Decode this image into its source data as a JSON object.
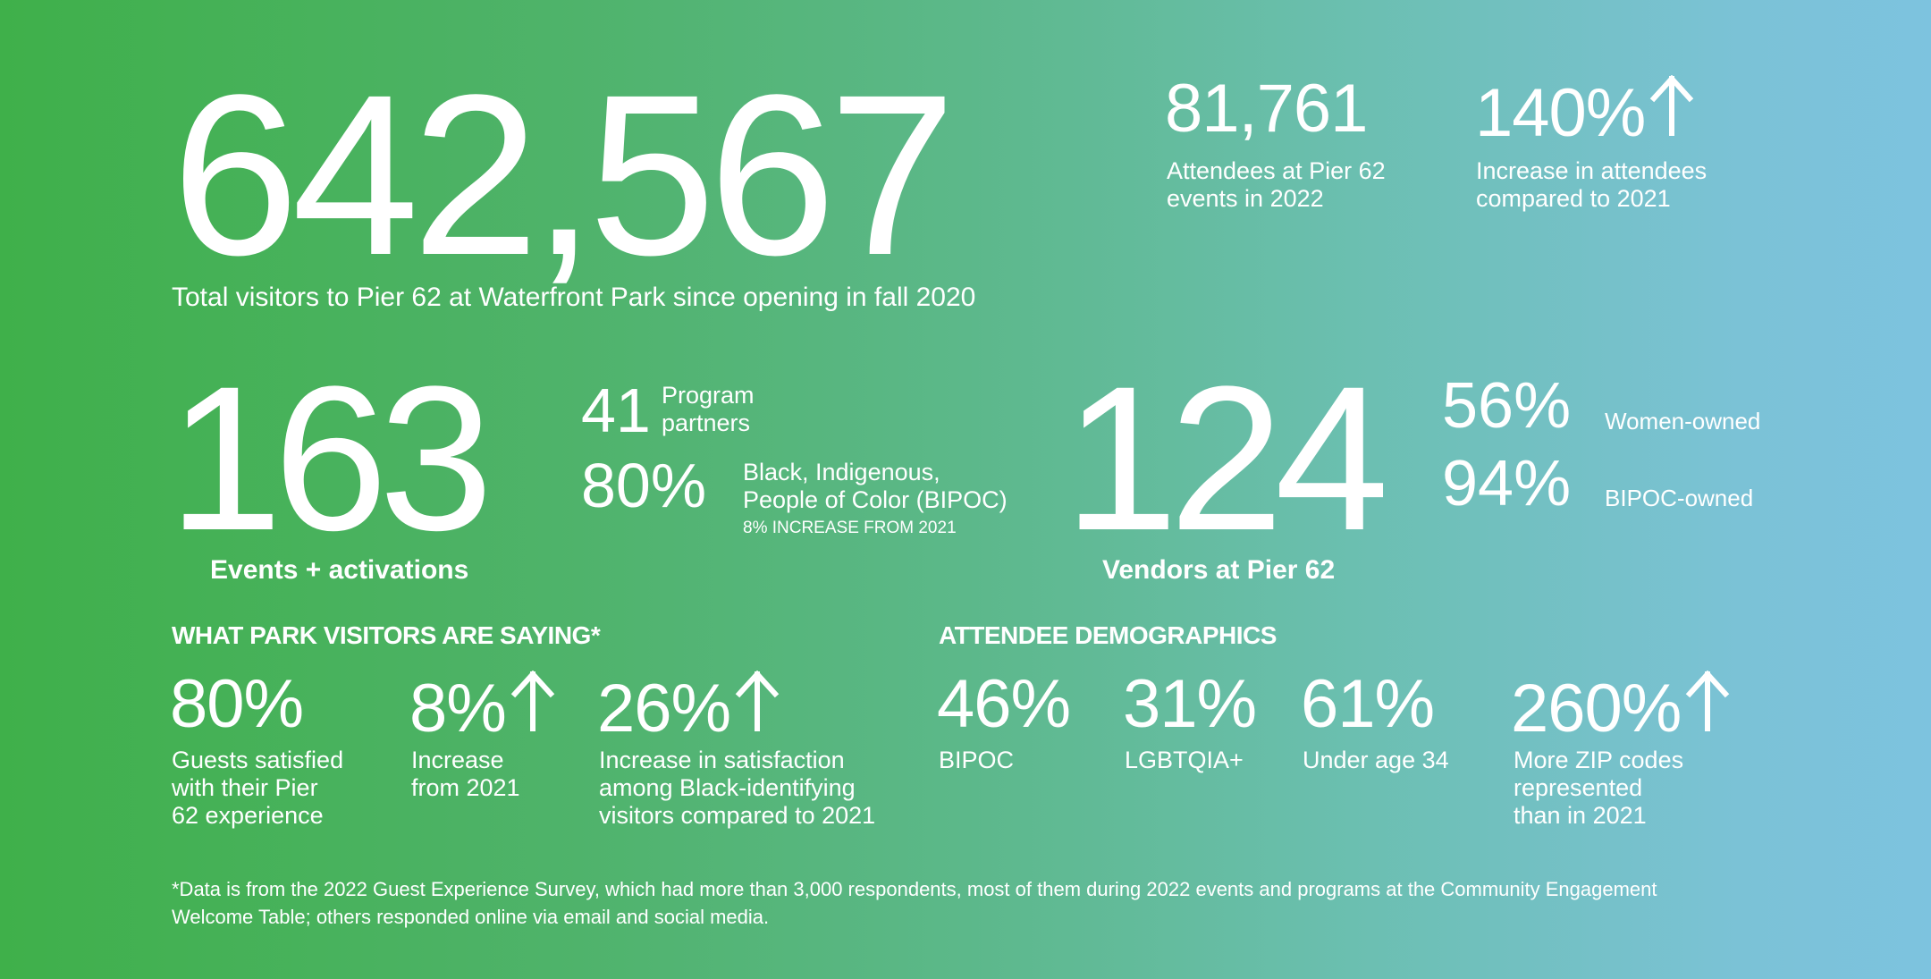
{
  "top": {
    "total_visitors": "642,567",
    "total_visitors_label": "Total visitors to Pier 62 at Waterfront Park since opening in fall 2020",
    "attendees_value": "81,761",
    "attendees_label": "Attendees at Pier 62\nevents in 2022",
    "increase_value": "140%",
    "increase_label": "Increase in attendees\ncompared to 2021"
  },
  "events": {
    "value": "163",
    "label": "Events + activations",
    "partners_value": "41",
    "partners_label": "Program\npartners",
    "bipoc_value": "80%",
    "bipoc_label": "Black, Indigenous,\nPeople of Color (BIPOC)",
    "bipoc_note": "8% INCREASE FROM 2021"
  },
  "vendors": {
    "value": "124",
    "label": "Vendors at Pier 62",
    "women_value": "56%",
    "women_label": "Women-owned",
    "bipoc_value": "94%",
    "bipoc_label": "BIPOC-owned"
  },
  "saying": {
    "heading": "WHAT PARK VISITORS ARE SAYING*",
    "stats": [
      {
        "value": "80%",
        "label": "Guests satisfied\nwith their Pier\n62 experience",
        "arrow": false
      },
      {
        "value": "8%",
        "label": "Increase\nfrom 2021",
        "arrow": true
      },
      {
        "value": "26%",
        "label": "Increase in satisfaction\namong Black-identifying\nvisitors compared to 2021",
        "arrow": true
      }
    ]
  },
  "demographics": {
    "heading": "ATTENDEE DEMOGRAPHICS",
    "stats": [
      {
        "value": "46%",
        "label": "BIPOC",
        "arrow": false
      },
      {
        "value": "31%",
        "label": "LGBTQIA+",
        "arrow": false
      },
      {
        "value": "61%",
        "label": "Under age 34",
        "arrow": false
      },
      {
        "value": "260%",
        "label": "More ZIP codes\nrepresented\nthan in 2021",
        "arrow": true
      }
    ]
  },
  "footnote": "*Data is from the 2022 Guest Experience Survey, which had more than 3,000 respondents, most of them during 2022 events and programs at the Community Engagement\nWelcome Table; others responded online via email and social media.",
  "colors": {
    "gradient_start": "#3fb04a",
    "gradient_end": "#7dc3df",
    "text": "#ffffff"
  },
  "icons": {
    "increase": "up-arrow-icon"
  }
}
